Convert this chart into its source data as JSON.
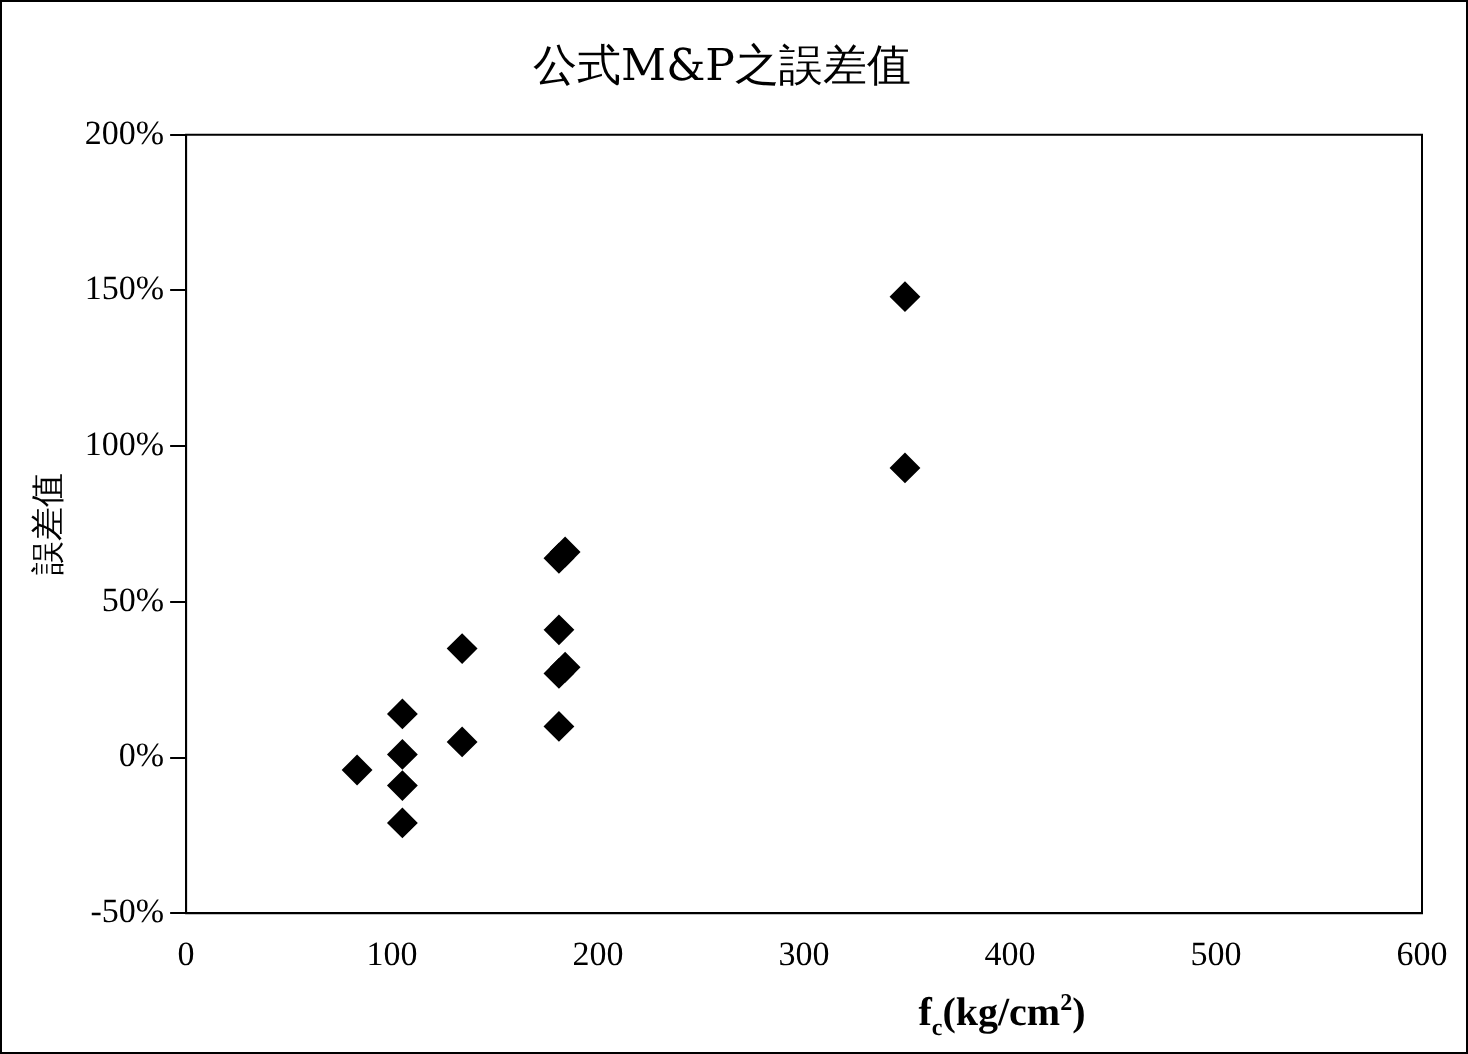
{
  "chart_data": {
    "type": "scatter",
    "title": "公式M&P之誤差值",
    "xlabel": "f$_{c}$(kg/cm$^{2}$)",
    "ylabel": "誤差值",
    "x": [
      83,
      105,
      105,
      105,
      105,
      134,
      134,
      181,
      181,
      181,
      184,
      181,
      184,
      349,
      349
    ],
    "series": [
      {
        "color": "#000000",
        "values": [
          -4,
          14,
          1,
          -9,
          -21,
          35,
          5,
          10,
          41,
          27,
          29,
          64,
          66,
          148,
          93
        ]
      }
    ],
    "xlim": [
      0,
      600
    ],
    "xticks": [
      0,
      100,
      200,
      300,
      400,
      500,
      600
    ],
    "ylim": [
      -50,
      200
    ],
    "yticks": [
      {
        "value": -50,
        "label": "-50%"
      },
      {
        "value": 0,
        "label": "0%"
      },
      {
        "value": 50,
        "label": "50%"
      },
      {
        "value": 100,
        "label": "100%"
      },
      {
        "value": 150,
        "label": "150%"
      },
      {
        "value": 200,
        "label": "200%"
      }
    ],
    "grid": false,
    "legend": false,
    "marker": "diamond"
  }
}
